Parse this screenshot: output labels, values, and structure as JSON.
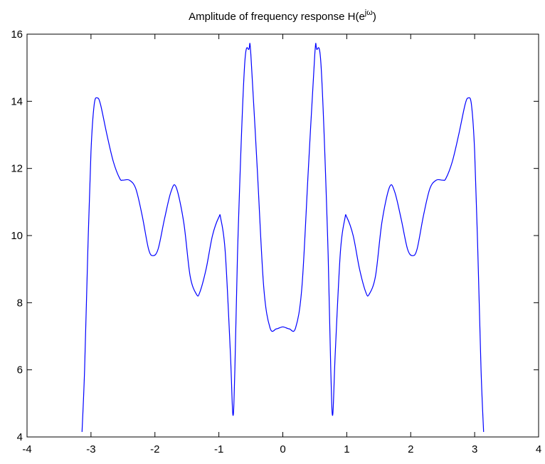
{
  "chart_data": {
    "type": "line",
    "title": {
      "text": "Amplitude of frequency response H(e",
      "superscript": "jω",
      "end": ")"
    },
    "x": [
      -3.14,
      -3.1,
      -3.05,
      -3.0,
      -2.95,
      -2.9,
      -2.85,
      -2.75,
      -2.65,
      -2.55,
      -2.5,
      -2.4,
      -2.3,
      -2.2,
      -2.1,
      -2.03,
      -1.95,
      -1.85,
      -1.75,
      -1.67,
      -1.55,
      -1.45,
      -1.35,
      -1.3,
      -1.2,
      -1.1,
      -1.0,
      -0.97,
      -0.9,
      -0.82,
      -0.78,
      -0.75,
      -0.7,
      -0.6,
      -0.53,
      -0.5,
      -0.4,
      -0.3,
      -0.2,
      -0.1,
      0,
      0.1,
      0.2,
      0.3,
      0.4,
      0.5,
      0.53,
      0.6,
      0.7,
      0.75,
      0.78,
      0.82,
      0.9,
      0.97,
      1.0,
      1.1,
      1.2,
      1.3,
      1.35,
      1.45,
      1.55,
      1.67,
      1.75,
      1.85,
      1.95,
      2.03,
      2.1,
      2.2,
      2.3,
      2.4,
      2.5,
      2.55,
      2.65,
      2.75,
      2.85,
      2.9,
      2.95,
      3.0,
      3.05,
      3.1,
      3.14
    ],
    "series": [
      {
        "color": "#0000ff",
        "values": [
          4.15,
          6,
          9.5,
          12.5,
          13.9,
          14.1,
          13.9,
          13,
          12.2,
          11.7,
          11.65,
          11.65,
          11.4,
          10.6,
          9.6,
          9.4,
          9.6,
          10.5,
          11.3,
          11.45,
          10.4,
          8.8,
          8.25,
          8.3,
          9,
          10,
          10.55,
          10.5,
          9.5,
          6.5,
          4.65,
          6,
          10,
          15,
          15.55,
          15.4,
          12,
          8.5,
          7.25,
          7.22,
          7.28,
          7.22,
          7.25,
          8.5,
          12,
          15.4,
          15.55,
          15,
          10,
          6,
          4.65,
          6.5,
          9.5,
          10.5,
          10.55,
          10,
          9,
          8.3,
          8.25,
          8.8,
          10.4,
          11.45,
          11.3,
          10.5,
          9.6,
          9.4,
          9.6,
          10.6,
          11.4,
          11.65,
          11.65,
          11.7,
          12.2,
          13,
          13.9,
          14.1,
          13.9,
          12.5,
          9.5,
          6,
          4.15
        ]
      }
    ],
    "xlim": [
      -4,
      4
    ],
    "xticks": [
      -4,
      -3,
      -2,
      -1,
      0,
      1,
      2,
      3,
      4
    ],
    "ylim": [
      4,
      16
    ],
    "yticks": [
      4,
      6,
      8,
      10,
      12,
      14,
      16
    ]
  }
}
